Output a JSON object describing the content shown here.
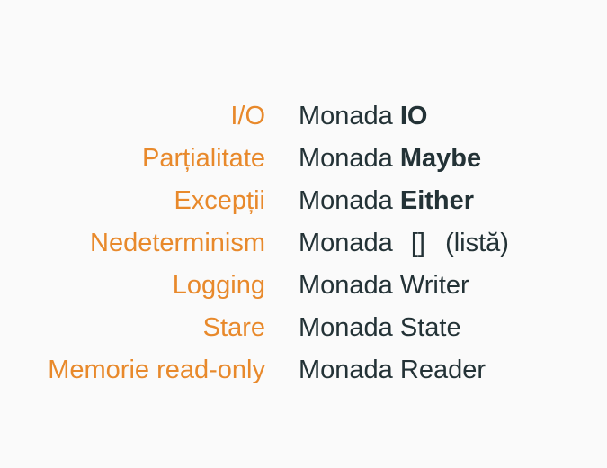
{
  "colors": {
    "effect": "#e8892b",
    "monad": "#233236",
    "background": "#fafafa"
  },
  "rows": [
    {
      "effect": "I/O",
      "prefix": "Monada",
      "name": "IO"
    },
    {
      "effect": "Parțialitate",
      "prefix": "Monada",
      "name": "Maybe"
    },
    {
      "effect": "Excepții",
      "prefix": "Monada",
      "name": "Either"
    },
    {
      "effect": "Nedeterminism",
      "prefix": "Monada",
      "symbol": "[]",
      "note": "(listă)"
    },
    {
      "effect": "Logging",
      "prefix": "Monada",
      "plain": "Writer"
    },
    {
      "effect": "Stare",
      "prefix": "Monada",
      "plain": "State"
    },
    {
      "effect": "Memorie read-only",
      "prefix": "Monada",
      "plain": "Reader"
    }
  ]
}
